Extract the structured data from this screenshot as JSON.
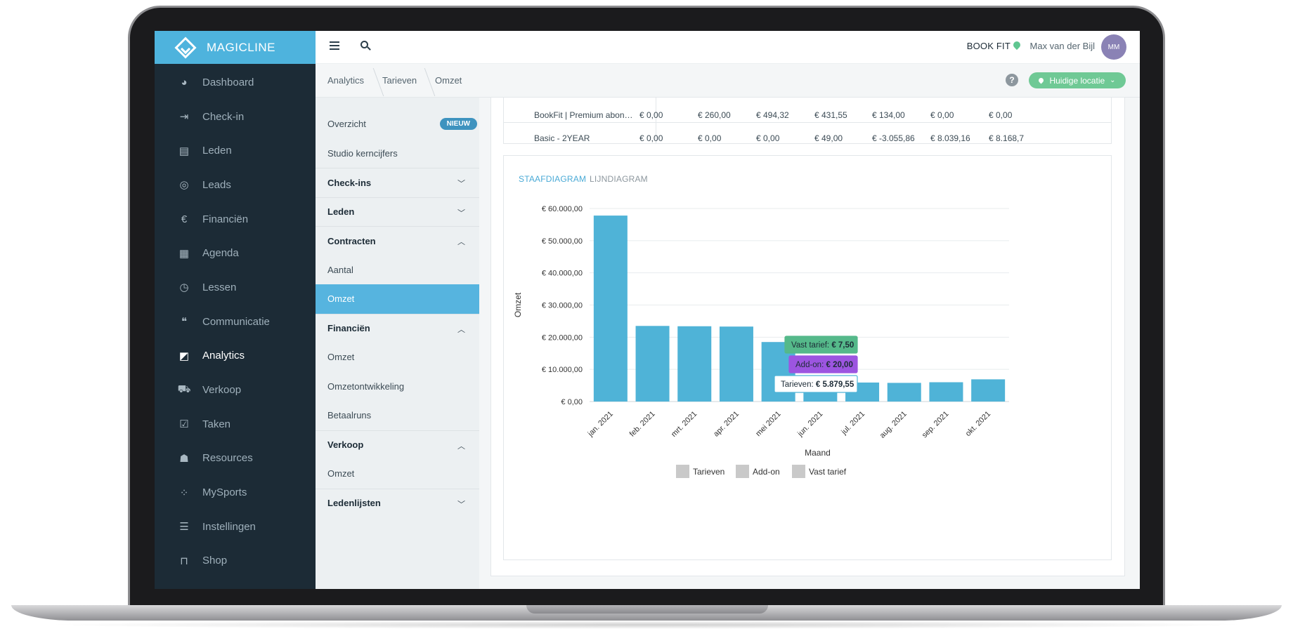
{
  "app": {
    "name": "MAGICLINE",
    "studio": "BOOK FIT",
    "user_name": "Max van der Bijl",
    "user_initials": "MM"
  },
  "nav": {
    "items": [
      {
        "label": "Dashboard",
        "icon": "dashboard-icon",
        "glyph": "◕"
      },
      {
        "label": "Check-in",
        "icon": "check-in-icon",
        "glyph": "⇥"
      },
      {
        "label": "Leden",
        "icon": "members-icon",
        "glyph": "▤"
      },
      {
        "label": "Leads",
        "icon": "leads-icon",
        "glyph": "◎"
      },
      {
        "label": "Financiën",
        "icon": "euro-icon",
        "glyph": "€"
      },
      {
        "label": "Agenda",
        "icon": "calendar-icon",
        "glyph": "▦"
      },
      {
        "label": "Lessen",
        "icon": "stopwatch-icon",
        "glyph": "◷"
      },
      {
        "label": "Communicatie",
        "icon": "chat-icon",
        "glyph": "❝"
      },
      {
        "label": "Analytics",
        "icon": "analytics-icon",
        "glyph": "◩",
        "active": true
      },
      {
        "label": "Verkoop",
        "icon": "cart-icon",
        "glyph": "⛟"
      },
      {
        "label": "Taken",
        "icon": "task-icon",
        "glyph": "☑"
      },
      {
        "label": "Resources",
        "icon": "users-icon",
        "glyph": "☗"
      },
      {
        "label": "MySports",
        "icon": "mysports-icon",
        "glyph": "⁘"
      },
      {
        "label": "Instellingen",
        "icon": "settings-sliders-icon",
        "glyph": "☰"
      },
      {
        "label": "Shop",
        "icon": "shop-icon",
        "glyph": "⊓"
      }
    ]
  },
  "breadcrumb": [
    "Analytics",
    "Tarieven",
    "Omzet"
  ],
  "location_button": "Huidige locatie",
  "subnav": {
    "items": [
      {
        "type": "item",
        "label": "Overzicht",
        "badge": "NIEUW"
      },
      {
        "type": "item",
        "label": "Studio kerncijfers"
      },
      {
        "type": "head",
        "label": "Check-ins",
        "expanded": false
      },
      {
        "type": "head",
        "label": "Leden",
        "expanded": false
      },
      {
        "type": "head",
        "label": "Contracten",
        "expanded": true
      },
      {
        "type": "item",
        "label": "Aantal"
      },
      {
        "type": "item",
        "label": "Omzet",
        "active": true
      },
      {
        "type": "head",
        "label": "Financiën",
        "expanded": true
      },
      {
        "type": "item",
        "label": "Omzet"
      },
      {
        "type": "item",
        "label": "Omzetontwikkeling"
      },
      {
        "type": "item",
        "label": "Betaalruns"
      },
      {
        "type": "head",
        "label": "Verkoop",
        "expanded": true
      },
      {
        "type": "item",
        "label": "Omzet"
      },
      {
        "type": "head",
        "label": "Ledenlijsten",
        "expanded": false
      }
    ]
  },
  "table": {
    "rows": [
      {
        "name": "BookFit | Premium abon…",
        "values": [
          "€ 0,00",
          "€ 260,00",
          "€ 494,32",
          "€ 431,55",
          "€ 134,00",
          "€ 0,00",
          "€ 0,00"
        ]
      },
      {
        "name": "Basic - 2YEAR",
        "values": [
          "€ 0,00",
          "€ 0,00",
          "€ 0,00",
          "€ 49,00",
          "€ -3.055,86",
          "€ 8.039,16",
          "€ 8.168,7"
        ]
      }
    ]
  },
  "chart_tabs": {
    "bar": "STAAFDIAGRAM",
    "line": "LIJNDIAGRAM"
  },
  "chart_data": {
    "type": "bar",
    "categories": [
      "jan. 2021",
      "feb. 2021",
      "mrt. 2021",
      "apr. 2021",
      "mei 2021",
      "jun. 2021",
      "jul. 2021",
      "aug. 2021",
      "sep. 2021",
      "okt. 2021"
    ],
    "series": [
      {
        "name": "Tarieven",
        "values": [
          57800,
          23500,
          23400,
          23300,
          18500,
          5800,
          5879.55,
          5800,
          6000,
          6900
        ]
      },
      {
        "name": "Add-on",
        "values": [
          0,
          0,
          0,
          0,
          0,
          0,
          20,
          0,
          0,
          0
        ]
      },
      {
        "name": "Vast tarief",
        "values": [
          0,
          0,
          0,
          0,
          0,
          0,
          7.5,
          0,
          0,
          0
        ]
      }
    ],
    "xlabel": "Maand",
    "ylabel": "Omzet",
    "ylim": [
      0,
      60000
    ],
    "yticks": [
      "€ 0,00",
      "€ 10.000,00",
      "€ 20.000,00",
      "€ 30.000,00",
      "€ 40.000,00",
      "€ 50.000,00",
      "€ 60.000,00"
    ],
    "legend": [
      "Tarieven",
      "Add-on",
      "Vast tarief"
    ],
    "legend_position": "bottom",
    "grid": true,
    "bar_color": "#4fb3d7",
    "tooltip": [
      {
        "label": "Vast tarief: ",
        "value": "€ 7,50",
        "color": "#55b98a"
      },
      {
        "label": "Add-on: ",
        "value": "€ 20,00",
        "color": "#9c55e0"
      },
      {
        "label": "Tarieven: ",
        "value": "€ 5.879,55",
        "color": "#4fb3d7"
      }
    ]
  }
}
